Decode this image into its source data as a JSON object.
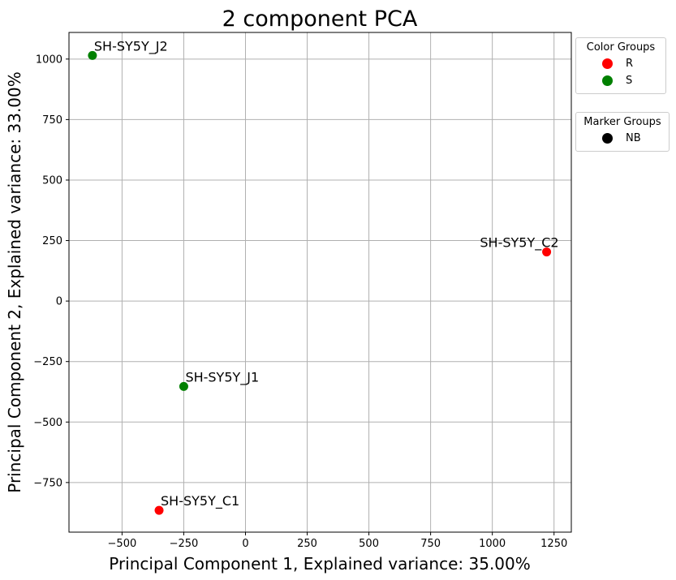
{
  "chart_data": {
    "type": "scatter",
    "title": "2 component PCA",
    "xlabel": "Principal Component 1, Explained variance: 35.00%",
    "ylabel": "Principal Component 2, Explained variance: 33.00%",
    "xlim": [
      -715,
      1320
    ],
    "ylim": [
      -955,
      1110
    ],
    "xticks": [
      -500,
      -250,
      0,
      250,
      500,
      750,
      1000,
      1250
    ],
    "xtick_labels": [
      "−500",
      "−250",
      "0",
      "250",
      "500",
      "750",
      "1000",
      "1250"
    ],
    "yticks": [
      -750,
      -500,
      -250,
      0,
      250,
      500,
      750,
      1000
    ],
    "ytick_labels": [
      "−750",
      "−500",
      "−250",
      "0",
      "250",
      "500",
      "750",
      "1000"
    ],
    "grid": true,
    "points": [
      {
        "label": "SH-SY5Y_J2",
        "x": -620,
        "y": 1015,
        "color_group": "S",
        "marker_group": "NB",
        "label_anchor": "start"
      },
      {
        "label": "SH-SY5Y_C2",
        "x": 1220,
        "y": 203,
        "color_group": "R",
        "marker_group": "NB",
        "label_anchor": "end"
      },
      {
        "label": "SH-SY5Y_J1",
        "x": -250,
        "y": -353,
        "color_group": "S",
        "marker_group": "NB",
        "label_anchor": "start"
      },
      {
        "label": "SH-SY5Y_C1",
        "x": -350,
        "y": -865,
        "color_group": "R",
        "marker_group": "NB",
        "label_anchor": "start"
      }
    ],
    "color_legend": {
      "title": "Color Groups",
      "items": [
        {
          "name": "R",
          "color": "#ff0000"
        },
        {
          "name": "S",
          "color": "#008000"
        }
      ]
    },
    "marker_legend": {
      "title": "Marker Groups",
      "items": [
        {
          "name": "NB",
          "color": "#000000"
        }
      ]
    },
    "legend_placement": "outside-right"
  }
}
